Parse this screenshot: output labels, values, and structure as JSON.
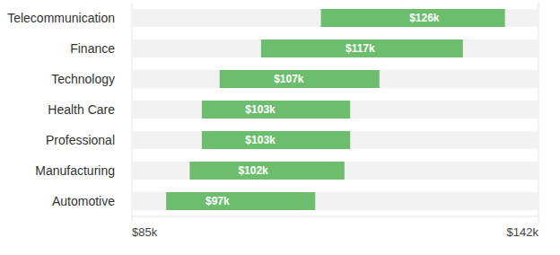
{
  "chart_data": {
    "type": "bar",
    "orientation": "horizontal",
    "categories": [
      "Telecommunication",
      "Finance",
      "Technology",
      "Health Care",
      "Professional",
      "Manufacturing",
      "Automotive"
    ],
    "low": [
      111.5,
      103.1,
      97.3,
      94.8,
      94.8,
      93.1,
      89.8
    ],
    "high": [
      137.3,
      131.4,
      119.7,
      115.6,
      115.6,
      114.8,
      110.7
    ],
    "values": [
      126,
      117,
      107,
      103,
      103,
      102,
      97
    ],
    "value_labels": [
      "$126k",
      "$117k",
      "$107k",
      "$103k",
      "$103k",
      "$102k",
      "$97k"
    ],
    "color": "#6cbd6e",
    "xlim": [
      85,
      142
    ],
    "xticks": [
      {
        "value": 85,
        "label": "$85k"
      },
      {
        "value": 142,
        "label": "$142k"
      }
    ],
    "grid": true,
    "data_labels": true
  }
}
